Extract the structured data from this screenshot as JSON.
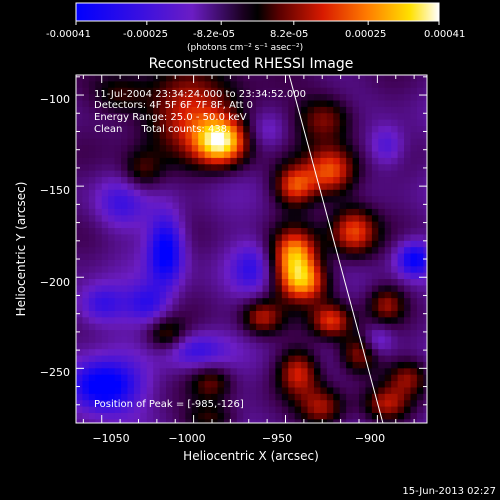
{
  "colorbar": {
    "tick_labels": [
      "-0.00041",
      "-0.00025",
      "-8.2e-05",
      "8.2e-05",
      "0.00025",
      "0.00041"
    ],
    "tick_values": [
      -0.00041,
      -0.00025,
      -8.2e-05,
      8.2e-05,
      0.00025,
      0.00041
    ],
    "units": "(photons cm⁻² s⁻¹ asec⁻²)"
  },
  "plot": {
    "title": "Reconstructed RHESSI Image",
    "annotations": {
      "time": "11-Jul-2004 23:34:24.000 to 23:34:52.000",
      "detectors": "Detectors: 4F 5F 6F 7F 8F, Att 0",
      "energy": "Energy Range: 25.0 - 50.0 keV",
      "clean": "Clean      Total counts: 438.",
      "peak": "Position of Peak = [-985,-126]"
    },
    "footer_timestamp": "15-Jun-2013 02:27"
  },
  "chart_data": {
    "type": "heatmap",
    "title": "Reconstructed RHESSI Image",
    "xlabel": "Heliocentric X (arcsec)",
    "ylabel": "Heliocentric Y (arcsec)",
    "xlim": [
      -1064,
      -873
    ],
    "ylim": [
      -280,
      -89
    ],
    "x_ticks": [
      -1050,
      -1000,
      -950,
      -900
    ],
    "y_ticks": [
      -250,
      -200,
      -150,
      -100
    ],
    "x_tick_labels": [
      "−1050",
      "−1000",
      "−950",
      "−900"
    ],
    "y_tick_labels": [
      "−250",
      "−200",
      "−150",
      "−100"
    ],
    "colormap_colors": [
      "#0000ff",
      "#6b1dc4",
      "#300035",
      "#000000",
      "#c81400",
      "#ff7a00",
      "#ffe000",
      "#ffffff"
    ],
    "features": [
      {
        "x": -1000,
        "y": -110,
        "amp": 0.65,
        "sx": 22,
        "sy": 16
      },
      {
        "x": -985,
        "y": -126,
        "amp": 1.0,
        "sx": 10,
        "sy": 9
      },
      {
        "x": -928,
        "y": -113,
        "amp": 0.55,
        "sx": 11,
        "sy": 9
      },
      {
        "x": -925,
        "y": -142,
        "amp": 0.8,
        "sx": 10,
        "sy": 10
      },
      {
        "x": -945,
        "y": -150,
        "amp": 0.7,
        "sx": 8,
        "sy": 8
      },
      {
        "x": -913,
        "y": -175,
        "amp": 0.75,
        "sx": 9,
        "sy": 10
      },
      {
        "x": -945,
        "y": -188,
        "amp": 0.9,
        "sx": 9,
        "sy": 10
      },
      {
        "x": -940,
        "y": -203,
        "amp": 0.8,
        "sx": 10,
        "sy": 8
      },
      {
        "x": -925,
        "y": -224,
        "amp": 0.7,
        "sx": 8,
        "sy": 7
      },
      {
        "x": -963,
        "y": -222,
        "amp": 0.55,
        "sx": 8,
        "sy": 7
      },
      {
        "x": -943,
        "y": -252,
        "amp": 0.6,
        "sx": 8,
        "sy": 9
      },
      {
        "x": -910,
        "y": -242,
        "amp": 0.6,
        "sx": 8,
        "sy": 8
      },
      {
        "x": -930,
        "y": -272,
        "amp": 0.55,
        "sx": 9,
        "sy": 8
      },
      {
        "x": -1015,
        "y": -232,
        "amp": 0.45,
        "sx": 8,
        "sy": 7
      },
      {
        "x": -990,
        "y": -258,
        "amp": 0.4,
        "sx": 8,
        "sy": 7
      },
      {
        "x": -990,
        "y": -278,
        "amp": 0.35,
        "sx": 10,
        "sy": 6
      },
      {
        "x": -1028,
        "y": -142,
        "amp": 0.4,
        "sx": 8,
        "sy": 8
      },
      {
        "x": -895,
        "y": -270,
        "amp": 0.5,
        "sx": 9,
        "sy": 7
      },
      {
        "x": -883,
        "y": -255,
        "amp": 0.45,
        "sx": 8,
        "sy": 7
      },
      {
        "x": -895,
        "y": -215,
        "amp": 0.45,
        "sx": 7,
        "sy": 7
      },
      {
        "x": -1040,
        "y": -100,
        "amp": 0.3,
        "sx": 10,
        "sy": 8
      },
      {
        "x": -1050,
        "y": -260,
        "amp": -0.9,
        "sx": 14,
        "sy": 10
      },
      {
        "x": -1015,
        "y": -185,
        "amp": -0.8,
        "sx": 7,
        "sy": 14
      },
      {
        "x": -1040,
        "y": -160,
        "amp": -0.35,
        "sx": 10,
        "sy": 10
      },
      {
        "x": -1050,
        "y": -215,
        "amp": -0.5,
        "sx": 10,
        "sy": 8
      },
      {
        "x": -1025,
        "y": -215,
        "amp": -0.45,
        "sx": 8,
        "sy": 8
      },
      {
        "x": -1000,
        "y": -240,
        "amp": -0.45,
        "sx": 12,
        "sy": 7
      },
      {
        "x": -968,
        "y": -195,
        "amp": -0.4,
        "sx": 8,
        "sy": 10
      },
      {
        "x": -880,
        "y": -190,
        "amp": -0.7,
        "sx": 7,
        "sy": 7
      },
      {
        "x": -895,
        "y": -128,
        "amp": -0.4,
        "sx": 7,
        "sy": 8
      },
      {
        "x": -960,
        "y": -120,
        "amp": -0.3,
        "sx": 8,
        "sy": 8
      },
      {
        "x": -900,
        "y": -235,
        "amp": -0.35,
        "sx": 6,
        "sy": 6
      }
    ],
    "limb_line": [
      {
        "x": -948,
        "y": -89
      },
      {
        "x": -897,
        "y": -280
      }
    ]
  }
}
